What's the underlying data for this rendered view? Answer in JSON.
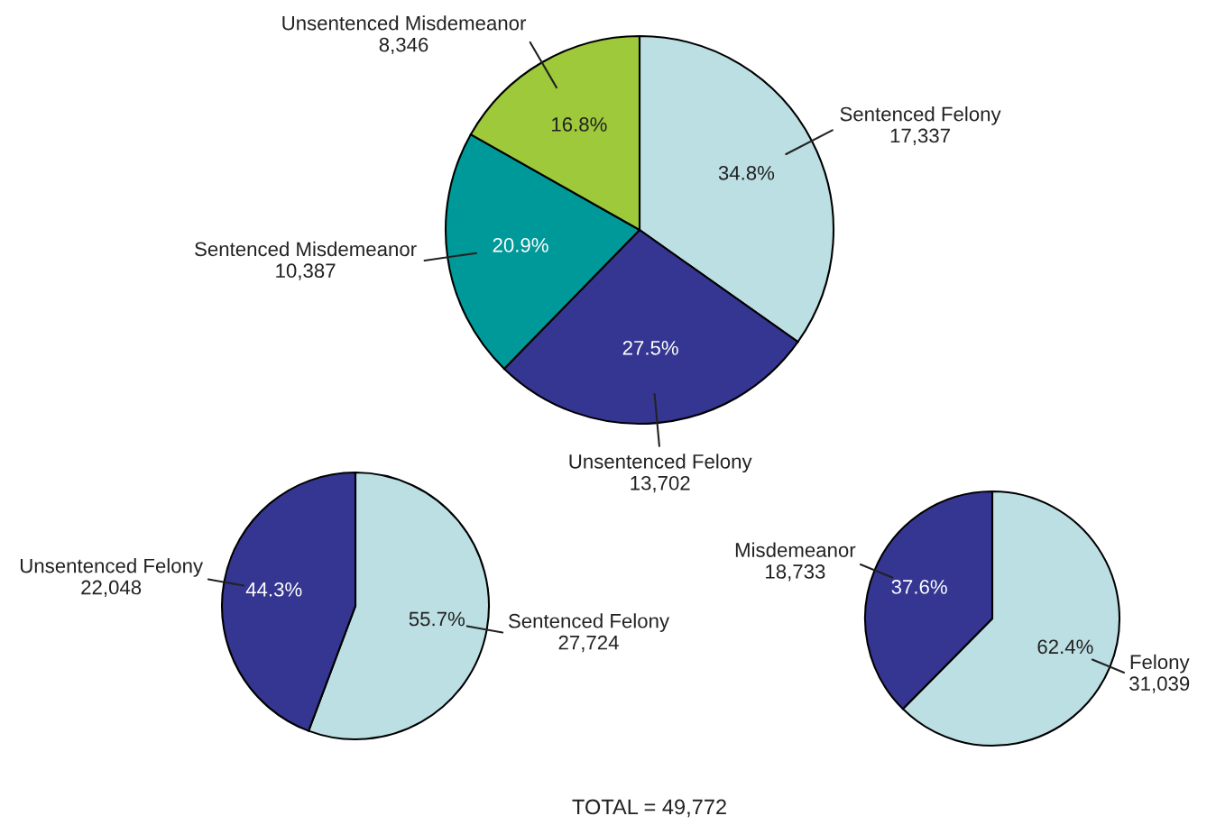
{
  "chart_data": [
    {
      "type": "pie",
      "categories": [
        "Sentenced Felony\n17,337",
        "Unsentenced Felony\n13,702",
        "Sentenced Misdemeanor\n10,387",
        "Unsentenced Misdemeanor\n8,346"
      ],
      "values": [
        34.8,
        27.5,
        20.9,
        16.8
      ],
      "colors": [
        "#bcdfe3",
        "#343691",
        "#009999",
        "#9dc93b"
      ],
      "value_labels": [
        "34.8%",
        "27.5%",
        "20.9%",
        "16.8%"
      ],
      "annotations": [
        "TOTAL = 49,772"
      ]
    },
    {
      "type": "pie",
      "categories": [
        "Sentenced Felony\n27,724",
        "Unsentenced Felony\n22,048"
      ],
      "values": [
        55.7,
        44.3
      ],
      "colors": [
        "#bcdfe3",
        "#343691"
      ],
      "value_labels": [
        "55.7%",
        "44.3%"
      ]
    },
    {
      "type": "pie",
      "categories": [
        "Felony\n31,039",
        "Misdemeanor\n18,733"
      ],
      "values": [
        62.4,
        37.6
      ],
      "colors": [
        "#bcdfe3",
        "#343691"
      ],
      "value_labels": [
        "62.4%",
        "37.6%"
      ]
    }
  ]
}
